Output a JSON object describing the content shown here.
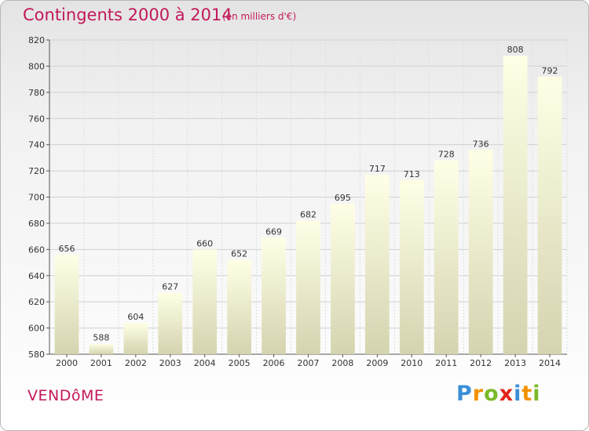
{
  "title": "Contingents 2000 à 2014",
  "subtitle": "(en milliers d'€)",
  "commune": "VENDôME",
  "logo": {
    "letters": [
      "P",
      "r",
      "o",
      "x",
      "i",
      "t",
      "i"
    ],
    "colors": [
      "#3a8fd6",
      "#f39200",
      "#7ab929",
      "#e2231a",
      "#3a8fd6",
      "#f39200",
      "#7ab929"
    ]
  },
  "colors": {
    "title": "#c2185b",
    "bar_top": "#ffffe6",
    "bar_bottom": "#d4d4b0"
  },
  "chart_data": {
    "type": "bar",
    "title": "Contingents 2000 à 2014",
    "subtitle": "(en milliers d'€)",
    "categories": [
      "2000",
      "2001",
      "2002",
      "2003",
      "2004",
      "2005",
      "2006",
      "2007",
      "2008",
      "2009",
      "2010",
      "2011",
      "2012",
      "2013",
      "2014"
    ],
    "values": [
      656,
      588,
      604,
      627,
      660,
      652,
      669,
      682,
      695,
      717,
      713,
      728,
      736,
      808,
      792
    ],
    "ylim": [
      580,
      820
    ],
    "yticks": [
      580,
      600,
      620,
      640,
      660,
      680,
      700,
      720,
      740,
      760,
      780,
      800,
      820
    ],
    "grid": true,
    "data_labels": true
  }
}
